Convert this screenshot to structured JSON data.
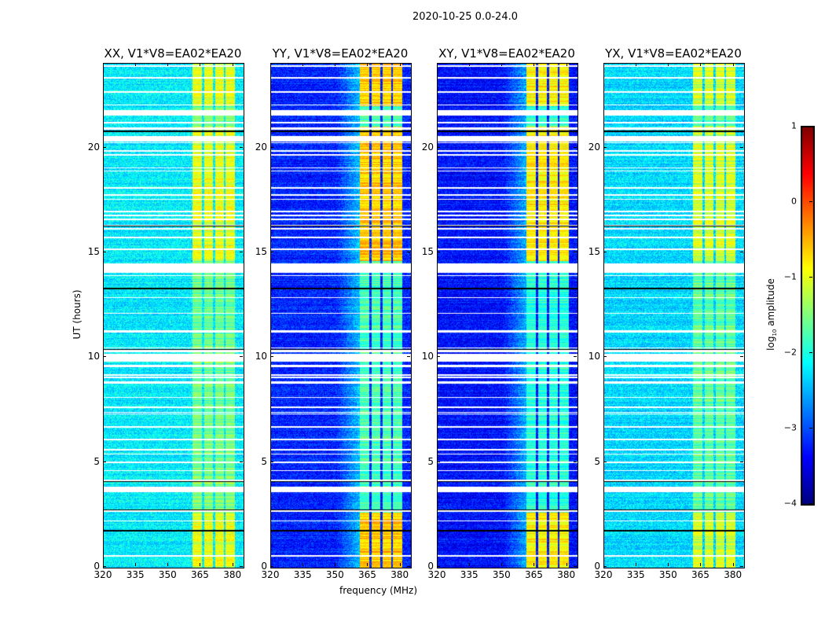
{
  "chart_data": {
    "type": "heatmap",
    "title": "2020-10-25 0.0-24.0",
    "xlabel": "frequency (MHz)",
    "ylabel": "UT (hours)",
    "xlim": [
      320,
      384.5
    ],
    "ylim": [
      0,
      24
    ],
    "xticks": [
      320,
      335,
      350,
      365,
      380
    ],
    "yticks": [
      0,
      5,
      10,
      15,
      20
    ],
    "colorbar": {
      "label": "log10 amplitude",
      "label_main": "log",
      "label_sub": "10",
      "label_rest": " amplitude",
      "range": [
        -4,
        1
      ],
      "ticks": [
        -4,
        -3,
        -2,
        -1,
        0,
        1
      ],
      "colormap": "jet"
    },
    "panels": [
      {
        "title": "XX, V1*V8=EA02*EA20",
        "base_level": -2.2,
        "band_boost": 1.2
      },
      {
        "title": "YY, V1*V8=EA02*EA20",
        "base_level": -3.2,
        "band_boost": 2.6
      },
      {
        "title": "XY, V1*V8=EA02*EA20",
        "base_level": -3.3,
        "band_boost": 2.5
      },
      {
        "title": "YX, V1*V8=EA02*EA20",
        "base_level": -2.3,
        "band_boost": 1.2
      }
    ],
    "rfi_band_mhz": [
      361,
      380.5
    ],
    "rfi_gaps_mhz": [
      366,
      371,
      376
    ],
    "rfi_strong_hours": [
      [
        0,
        2.6
      ],
      [
        14.6,
        21
      ],
      [
        22,
        24
      ]
    ],
    "flagged_hours": [
      [
        21.55,
        21.8
      ],
      [
        20.35,
        20.55
      ],
      [
        14.05,
        14.5
      ],
      [
        9.8,
        10.2
      ],
      [
        3.6,
        3.85
      ]
    ],
    "dropout_hours": [
      20.8,
      20.9,
      16.3,
      13.3,
      10.35,
      4.1,
      4.15,
      1.75,
      2.7
    ]
  }
}
